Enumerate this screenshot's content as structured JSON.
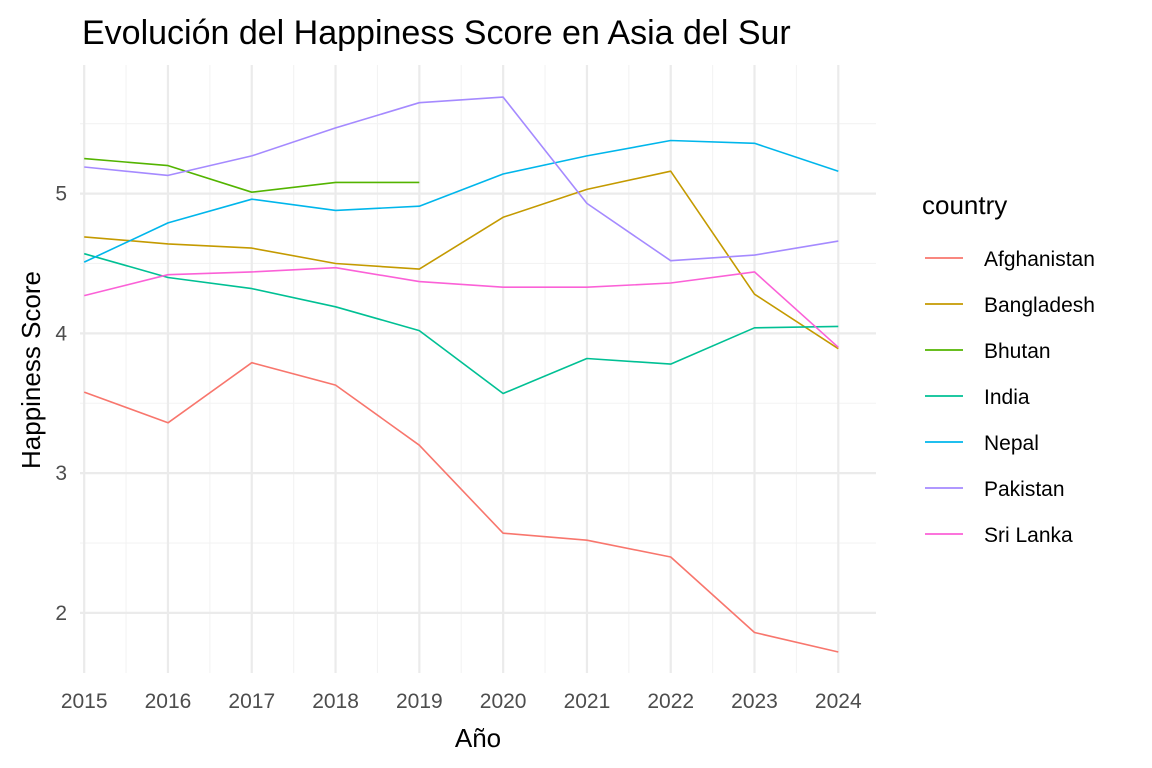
{
  "chart_data": {
    "type": "line",
    "title": "Evolución del Happiness Score en Asia del Sur",
    "xlabel": "Año",
    "ylabel": "Happiness Score",
    "x": [
      2015,
      2016,
      2017,
      2018,
      2019,
      2020,
      2021,
      2022,
      2023,
      2024
    ],
    "x_ticks": [
      "2015",
      "2016",
      "2017",
      "2018",
      "2019",
      "2020",
      "2021",
      "2022",
      "2023",
      "2024"
    ],
    "y_ticks": [
      "2",
      "3",
      "4",
      "5"
    ],
    "y_tick_values": [
      2,
      3,
      4,
      5
    ],
    "xlim": [
      2014.95,
      2024.45
    ],
    "ylim": [
      1.57,
      5.92
    ],
    "grid": true,
    "legend_title": "country",
    "legend_position": "right",
    "series": [
      {
        "name": "Afghanistan",
        "color": "#F8766D",
        "values": [
          3.58,
          3.36,
          3.79,
          3.63,
          3.2,
          2.57,
          2.52,
          2.4,
          1.86,
          1.72
        ]
      },
      {
        "name": "Bangladesh",
        "color": "#C49A00",
        "values": [
          4.69,
          4.64,
          4.61,
          4.5,
          4.46,
          4.83,
          5.03,
          5.16,
          4.28,
          3.89
        ]
      },
      {
        "name": "Bhutan",
        "color": "#53B400",
        "values": [
          5.25,
          5.2,
          5.01,
          5.08,
          5.08,
          null,
          null,
          null,
          null,
          null
        ]
      },
      {
        "name": "India",
        "color": "#00C094",
        "values": [
          4.57,
          4.4,
          4.32,
          4.19,
          4.02,
          3.57,
          3.82,
          3.78,
          4.04,
          4.05
        ]
      },
      {
        "name": "Nepal",
        "color": "#00B6EB",
        "values": [
          4.51,
          4.79,
          4.96,
          4.88,
          4.91,
          5.14,
          5.27,
          5.38,
          5.36,
          5.16
        ]
      },
      {
        "name": "Pakistan",
        "color": "#A58AFF",
        "values": [
          5.19,
          5.13,
          5.27,
          5.47,
          5.65,
          5.69,
          4.93,
          4.52,
          4.56,
          4.66
        ]
      },
      {
        "name": "Sri Lanka",
        "color": "#FB61D7",
        "values": [
          4.27,
          4.42,
          4.44,
          4.47,
          4.37,
          4.33,
          4.33,
          4.36,
          4.44,
          3.9
        ]
      }
    ]
  }
}
